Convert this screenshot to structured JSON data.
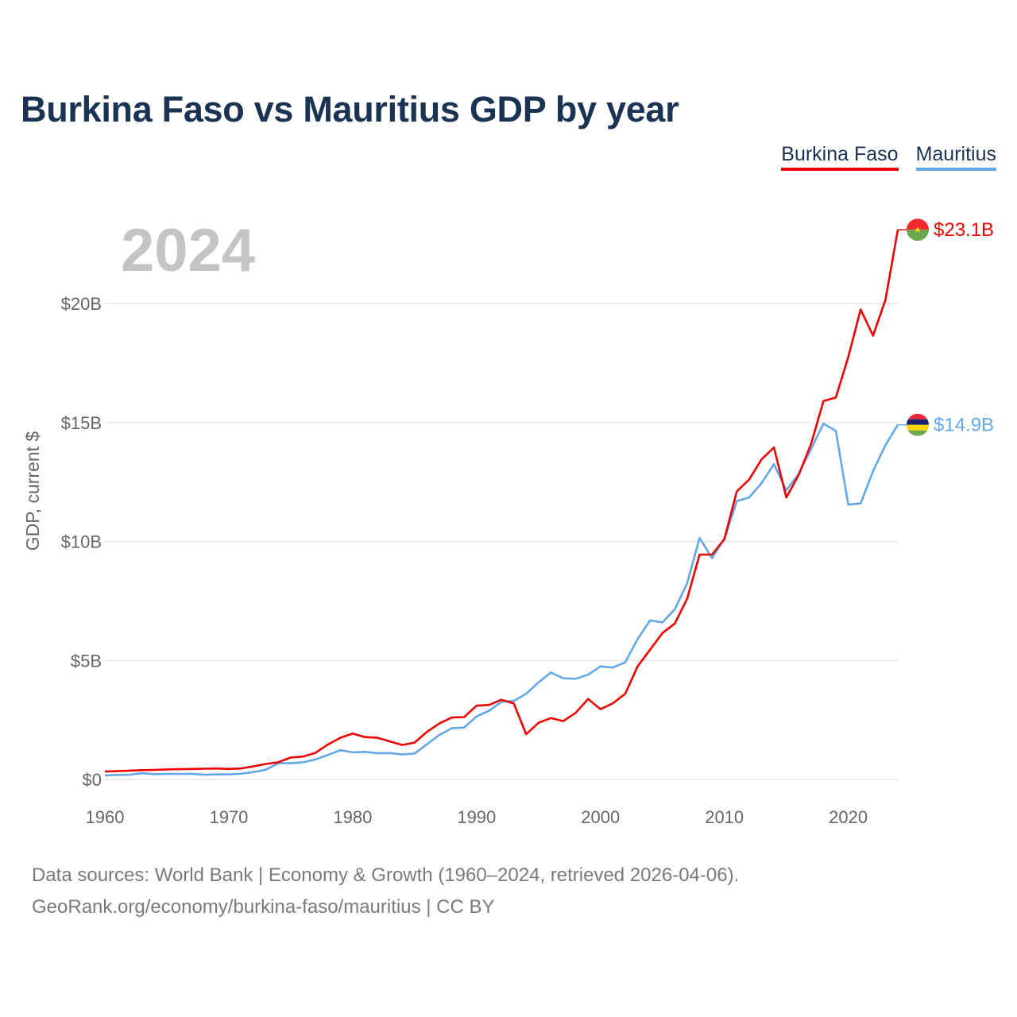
{
  "title": "Burkina Faso vs Mauritius GDP by year",
  "current_year": "2024",
  "legend": [
    {
      "name": "Burkina Faso",
      "color": "#ee0000"
    },
    {
      "name": "Mauritius",
      "color": "#63a8e6"
    }
  ],
  "footer": {
    "line1": "Data sources: World Bank | Economy & Growth (1960–2024, retrieved 2026-04-06).",
    "line2": "GeoRank.org/economy/burkina-faso/mauritius | CC BY"
  },
  "chart_data": {
    "type": "line",
    "title": "Burkina Faso vs Mauritius GDP by year",
    "xlabel": "",
    "ylabel": "GDP, current $",
    "xlim": [
      1960,
      2024
    ],
    "ylim": [
      0,
      23.1
    ],
    "x_ticks": [
      1960,
      1970,
      1980,
      1990,
      2000,
      2010,
      2020
    ],
    "y_ticks": [
      {
        "value": 0,
        "label": "$0"
      },
      {
        "value": 5,
        "label": "$5B"
      },
      {
        "value": 10,
        "label": "$10B"
      },
      {
        "value": 15,
        "label": "$15B"
      },
      {
        "value": 20,
        "label": "$20B"
      }
    ],
    "x": [
      1960,
      1961,
      1962,
      1963,
      1964,
      1965,
      1966,
      1967,
      1968,
      1969,
      1970,
      1971,
      1972,
      1973,
      1974,
      1975,
      1976,
      1977,
      1978,
      1979,
      1980,
      1981,
      1982,
      1983,
      1984,
      1985,
      1986,
      1987,
      1988,
      1989,
      1990,
      1991,
      1992,
      1993,
      1994,
      1995,
      1996,
      1997,
      1998,
      1999,
      2000,
      2001,
      2002,
      2003,
      2004,
      2005,
      2006,
      2007,
      2008,
      2009,
      2010,
      2011,
      2012,
      2013,
      2014,
      2015,
      2016,
      2017,
      2018,
      2019,
      2020,
      2021,
      2022,
      2023,
      2024
    ],
    "series": [
      {
        "name": "Burkina Faso",
        "color": "#ee0000",
        "end_label": "$23.1B",
        "values": [
          0.33,
          0.35,
          0.37,
          0.39,
          0.4,
          0.42,
          0.43,
          0.44,
          0.45,
          0.46,
          0.44,
          0.46,
          0.55,
          0.65,
          0.72,
          0.92,
          0.96,
          1.12,
          1.47,
          1.75,
          1.93,
          1.78,
          1.75,
          1.6,
          1.45,
          1.55,
          2.0,
          2.35,
          2.6,
          2.62,
          3.1,
          3.13,
          3.35,
          3.2,
          1.9,
          2.38,
          2.58,
          2.45,
          2.8,
          3.38,
          2.95,
          3.2,
          3.6,
          4.75,
          5.45,
          6.15,
          6.55,
          7.6,
          9.45,
          9.45,
          10.1,
          12.1,
          12.6,
          13.45,
          13.95,
          11.85,
          12.8,
          14.1,
          15.9,
          16.05,
          17.75,
          19.75,
          18.65,
          20.15,
          23.1
        ]
      },
      {
        "name": "Mauritius",
        "color": "#63a8e6",
        "end_label": "$14.9B",
        "values": [
          0.17,
          0.19,
          0.2,
          0.26,
          0.22,
          0.23,
          0.23,
          0.23,
          0.2,
          0.21,
          0.21,
          0.24,
          0.31,
          0.41,
          0.68,
          0.68,
          0.72,
          0.84,
          1.03,
          1.23,
          1.14,
          1.16,
          1.1,
          1.11,
          1.05,
          1.09,
          1.48,
          1.87,
          2.15,
          2.18,
          2.65,
          2.88,
          3.26,
          3.3,
          3.6,
          4.08,
          4.49,
          4.25,
          4.23,
          4.4,
          4.75,
          4.7,
          4.92,
          5.9,
          6.68,
          6.6,
          7.15,
          8.25,
          10.15,
          9.3,
          10.1,
          11.7,
          11.85,
          12.45,
          13.25,
          12.15,
          12.85,
          13.88,
          14.95,
          14.65,
          11.55,
          11.6,
          12.95,
          14.05,
          14.9
        ]
      }
    ]
  }
}
